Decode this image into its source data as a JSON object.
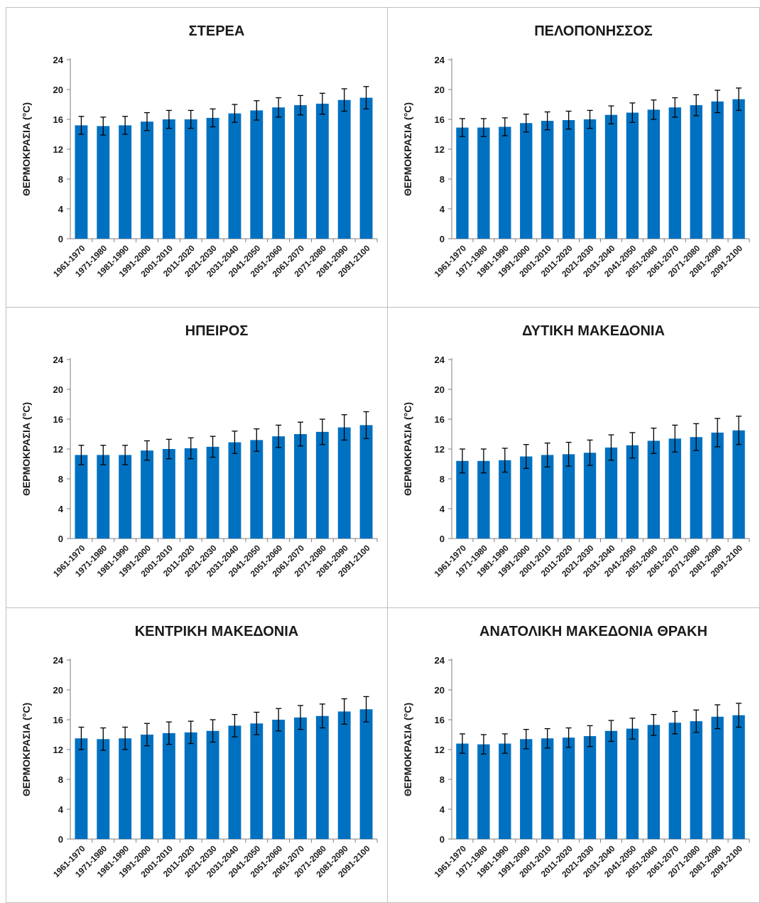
{
  "colors": {
    "bar": "#0070c0",
    "axis": "#7f7f7f",
    "error": "#000000",
    "panel_border": "#bfbfbf"
  },
  "chart_data": [
    {
      "type": "bar",
      "title": "ΣΤΕΡΕΑ",
      "ylabel": "ΘΕΡΜΟΚΡΑΣΙΑ (°C)",
      "ylim": [
        0,
        24
      ],
      "yticks": [
        "0",
        "4",
        "8",
        "12",
        "16",
        "20",
        "24"
      ],
      "grid": false,
      "categories": [
        "1961-1970",
        "1971-1980",
        "1981-1990",
        "1991-2000",
        "2001-2010",
        "2011-2020",
        "2021-2030",
        "2031-2040",
        "2041-2050",
        "2051-2060",
        "2061-2070",
        "2071-2080",
        "2081-2090",
        "2091-2100"
      ],
      "values": [
        15.2,
        15.1,
        15.2,
        15.7,
        16.0,
        16.0,
        16.2,
        16.8,
        17.2,
        17.6,
        17.9,
        18.1,
        18.6,
        18.9
      ],
      "error": [
        1.2,
        1.2,
        1.2,
        1.2,
        1.2,
        1.2,
        1.2,
        1.2,
        1.3,
        1.3,
        1.3,
        1.4,
        1.5,
        1.5
      ]
    },
    {
      "type": "bar",
      "title": "ΠΕΛΟΠΟΝΗΣΣΟΣ",
      "ylabel": "ΘΕΡΜΟΚΡΑΣΙΑ (°C)",
      "ylim": [
        0,
        24
      ],
      "yticks": [
        "0",
        "4",
        "8",
        "12",
        "16",
        "20",
        "24"
      ],
      "grid": false,
      "categories": [
        "1961-1970",
        "1971-1980",
        "1981-1990",
        "1991-2000",
        "2001-2010",
        "2011-2020",
        "2021-2030",
        "2031-2040",
        "2041-2050",
        "2051-2060",
        "2061-2070",
        "2071-2080",
        "2081-2090",
        "2091-2100"
      ],
      "values": [
        14.9,
        14.9,
        15.0,
        15.5,
        15.8,
        15.9,
        16.0,
        16.6,
        16.9,
        17.3,
        17.6,
        17.9,
        18.4,
        18.7
      ],
      "error": [
        1.2,
        1.2,
        1.2,
        1.2,
        1.2,
        1.2,
        1.2,
        1.2,
        1.3,
        1.3,
        1.3,
        1.4,
        1.5,
        1.5
      ]
    },
    {
      "type": "bar",
      "title": "ΗΠΕΙΡΟΣ",
      "ylabel": "ΘΕΡΜΟΚΡΑΣΙΑ (°C)",
      "ylim": [
        0,
        24
      ],
      "yticks": [
        "0",
        "4",
        "8",
        "12",
        "16",
        "20",
        "24"
      ],
      "grid": false,
      "categories": [
        "1961-1970",
        "1971-1980",
        "1981-1990",
        "1991-2000",
        "2001-2010",
        "2011-2020",
        "2021-2030",
        "2031-2040",
        "2041-2050",
        "2051-2060",
        "2061-2070",
        "2071-2080",
        "2081-2090",
        "2091-2100"
      ],
      "values": [
        11.2,
        11.2,
        11.2,
        11.8,
        12.0,
        12.1,
        12.3,
        12.9,
        13.2,
        13.7,
        14.0,
        14.3,
        14.9,
        15.2
      ],
      "error": [
        1.3,
        1.3,
        1.3,
        1.3,
        1.3,
        1.4,
        1.4,
        1.5,
        1.5,
        1.5,
        1.6,
        1.7,
        1.7,
        1.8
      ]
    },
    {
      "type": "bar",
      "title": "ΔΥΤΙΚΗ ΜΑΚΕΔΟΝΙΑ",
      "ylabel": "ΘΕΡΜΟΚΡΑΣΙΑ (°C)",
      "ylim": [
        0,
        24
      ],
      "yticks": [
        "0",
        "4",
        "8",
        "12",
        "16",
        "20",
        "24"
      ],
      "grid": false,
      "categories": [
        "1961-1970",
        "1971-1980",
        "1981-1990",
        "1991-2000",
        "2001-2010",
        "2011-2020",
        "2021-2030",
        "2031-2040",
        "2041-2050",
        "2051-2060",
        "2061-2070",
        "2071-2080",
        "2081-2090",
        "2091-2100"
      ],
      "values": [
        10.4,
        10.4,
        10.5,
        11.0,
        11.2,
        11.3,
        11.5,
        12.2,
        12.5,
        13.1,
        13.4,
        13.6,
        14.2,
        14.5
      ],
      "error": [
        1.6,
        1.6,
        1.6,
        1.6,
        1.6,
        1.6,
        1.7,
        1.7,
        1.7,
        1.7,
        1.8,
        1.8,
        1.9,
        1.9
      ]
    },
    {
      "type": "bar",
      "title": "ΚΕΝΤΡΙΚΗ ΜΑΚΕΔΟΝΙΑ",
      "ylabel": "ΘΕΡΜΟΚΡΑΣΙΑ (°C)",
      "ylim": [
        0,
        24
      ],
      "yticks": [
        "0",
        "4",
        "8",
        "12",
        "16",
        "20",
        "24"
      ],
      "grid": false,
      "categories": [
        "1961-1970",
        "1971-1980",
        "1981-1990",
        "1991-2000",
        "2001-2010",
        "2011-2020",
        "2021-2030",
        "2031-2040",
        "2041-2050",
        "2051-2060",
        "2061-2070",
        "2071-2080",
        "2081-2090",
        "2091-2100"
      ],
      "values": [
        13.5,
        13.4,
        13.5,
        14.0,
        14.2,
        14.3,
        14.5,
        15.2,
        15.5,
        16.0,
        16.3,
        16.5,
        17.1,
        17.4
      ],
      "error": [
        1.5,
        1.5,
        1.5,
        1.5,
        1.5,
        1.5,
        1.5,
        1.5,
        1.5,
        1.5,
        1.6,
        1.6,
        1.7,
        1.7
      ]
    },
    {
      "type": "bar",
      "title": "ΑΝΑΤΟΛΙΚΗ ΜΑΚΕΔΟΝΙΑ ΘΡΑΚΗ",
      "ylabel": "ΘΕΡΜΟΚΡΑΣΙΑ (°C)",
      "ylim": [
        0,
        24
      ],
      "yticks": [
        "0",
        "4",
        "8",
        "12",
        "16",
        "20",
        "24"
      ],
      "grid": false,
      "categories": [
        "1961-1970",
        "1971-1980",
        "1981-1990",
        "1991-2000",
        "2001-2010",
        "2011-2020",
        "2021-2030",
        "2031-2040",
        "2041-2050",
        "2051-2060",
        "2061-2070",
        "2071-2080",
        "2081-2090",
        "2091-2100"
      ],
      "values": [
        12.8,
        12.7,
        12.8,
        13.4,
        13.5,
        13.6,
        13.8,
        14.5,
        14.8,
        15.3,
        15.6,
        15.8,
        16.4,
        16.6
      ],
      "error": [
        1.3,
        1.3,
        1.3,
        1.3,
        1.3,
        1.3,
        1.4,
        1.4,
        1.4,
        1.4,
        1.5,
        1.5,
        1.6,
        1.6
      ]
    }
  ]
}
